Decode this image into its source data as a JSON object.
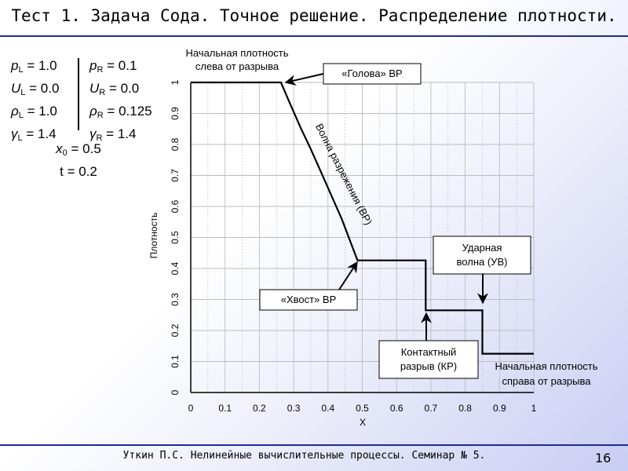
{
  "title": "Тест 1. Задача Сода. Точное решение. Распределение плотности.",
  "footer": "Уткин П.С. Нелинейные вычислительные процессы. Семинар № 5.",
  "page_number": "16",
  "params": {
    "left": [
      {
        "sym": "p",
        "sub": "L",
        "val": " = 1.0"
      },
      {
        "sym": "U",
        "sub": "L",
        "val": " = 0.0"
      },
      {
        "sym": "ρ",
        "sub": "L",
        "val": " = 1.0"
      },
      {
        "sym": "γ",
        "sub": "L",
        "val": " = 1.4"
      }
    ],
    "right": [
      {
        "sym": "p",
        "sub": "R",
        "val": " = 0.1"
      },
      {
        "sym": "U",
        "sub": "R",
        "val": " = 0.0"
      },
      {
        "sym": "ρ",
        "sub": "R",
        "val": " = 0.125"
      },
      {
        "sym": "γ",
        "sub": "R",
        "val": " = 1.4"
      }
    ],
    "x0": {
      "sym": "x",
      "sub": "0",
      "val": " = 0.5"
    },
    "t": "t = 0.2"
  },
  "chart_data": {
    "type": "line",
    "title": "",
    "xlabel": "X",
    "ylabel": "Плотность",
    "xlim": [
      0,
      1
    ],
    "ylim": [
      0,
      1
    ],
    "xticks": [
      "0",
      "0.1",
      "0.2",
      "0.3",
      "0.4",
      "0.5",
      "0.6",
      "0.7",
      "0.8",
      "0.9",
      "1"
    ],
    "yticks": [
      "0",
      "0.1",
      "0.2",
      "0.3",
      "0.4",
      "0.5",
      "0.6",
      "0.7",
      "0.8",
      "0.9",
      "1"
    ],
    "grid": true,
    "series": [
      {
        "name": "Плотность",
        "x": [
          0,
          0.263,
          0.29,
          0.32,
          0.35,
          0.38,
          0.41,
          0.44,
          0.486,
          0.685,
          0.685,
          0.85,
          0.85,
          1.0
        ],
        "y": [
          1.0,
          1.0,
          0.93,
          0.855,
          0.785,
          0.71,
          0.635,
          0.56,
          0.426,
          0.426,
          0.265,
          0.265,
          0.125,
          0.125
        ]
      }
    ],
    "annotations": [
      {
        "id": "left-density",
        "lines": [
          "Начальная плотность",
          "слева от разрыва"
        ]
      },
      {
        "id": "head",
        "lines": [
          "«Голова» ВР"
        ]
      },
      {
        "id": "rarefaction",
        "lines": [
          "Волна разрежения (ВР)"
        ]
      },
      {
        "id": "tail",
        "lines": [
          "«Хвост» ВР"
        ]
      },
      {
        "id": "shock",
        "lines": [
          "Ударная",
          "волна (УВ)"
        ]
      },
      {
        "id": "contact",
        "lines": [
          "Контактный",
          "разрыв (КР)"
        ]
      },
      {
        "id": "right-density",
        "lines": [
          "Начальная плотность",
          "справа от разрыва"
        ]
      }
    ]
  },
  "colors": {
    "rule": "#1f2a9a",
    "grid": "#bdbdbd",
    "line": "#000000"
  }
}
